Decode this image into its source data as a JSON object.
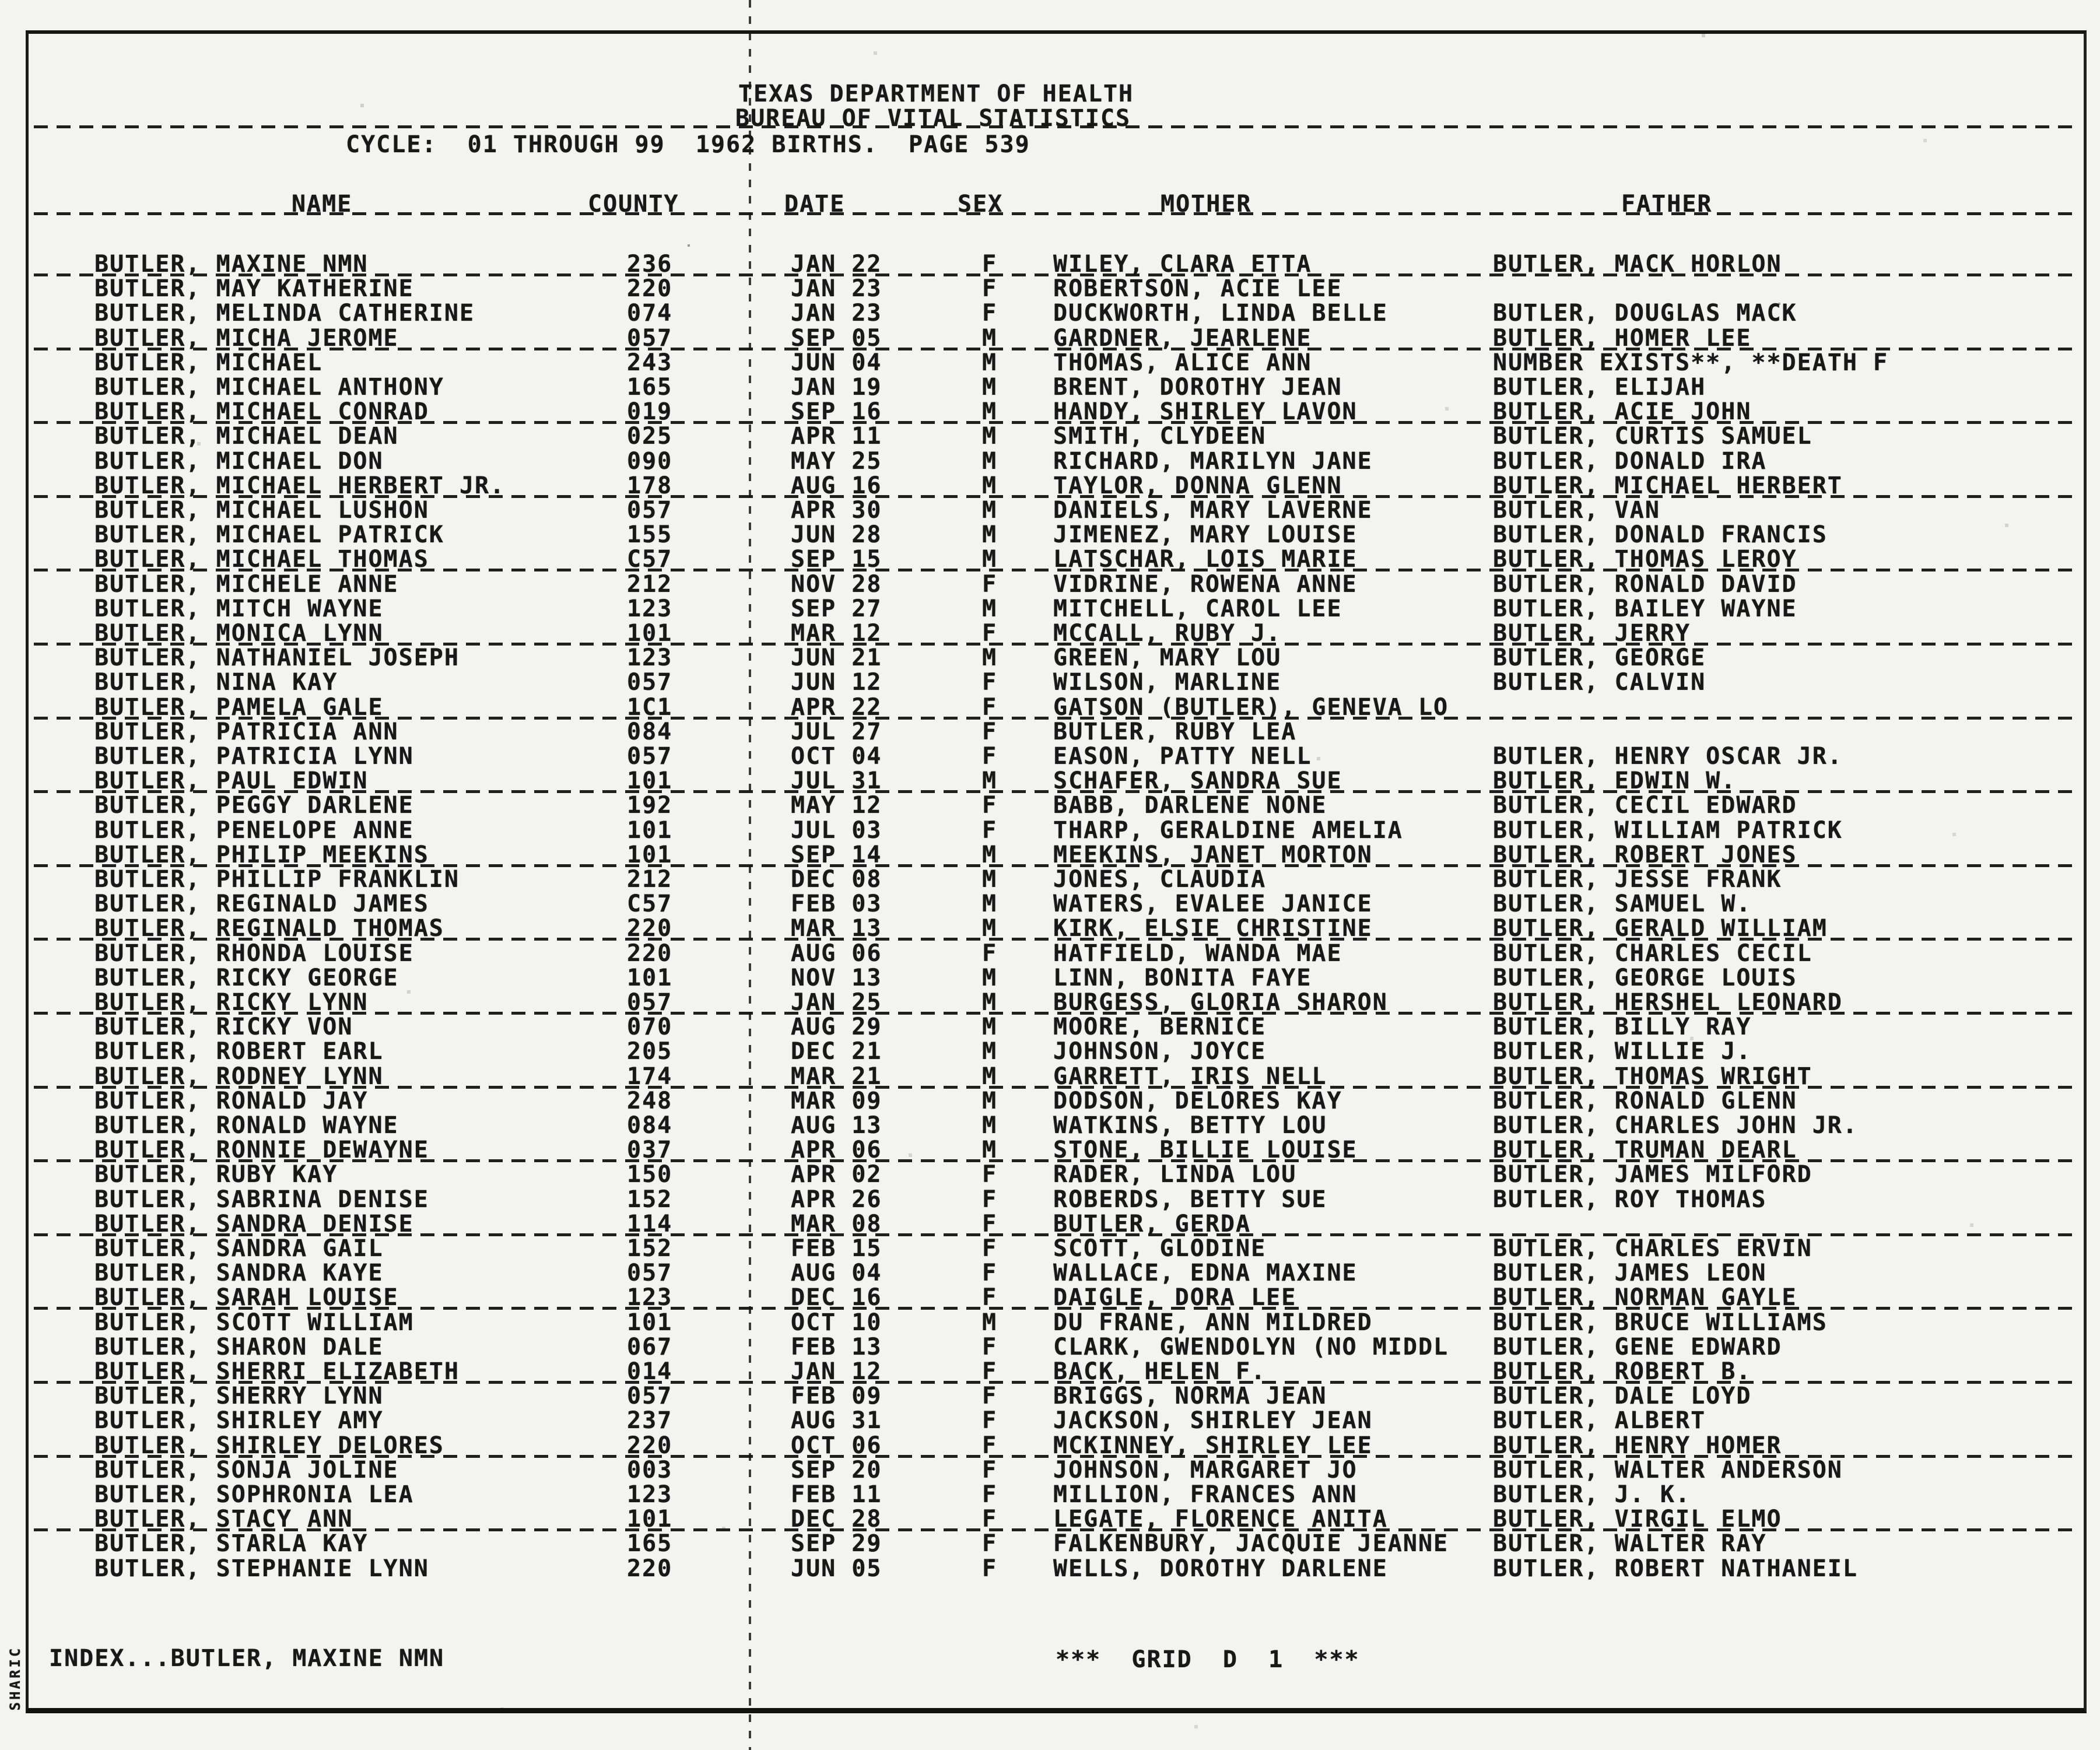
{
  "header": {
    "line1": "TEXAS DEPARTMENT OF HEALTH",
    "line2": "BUREAU OF VITAL STATISTICS",
    "cycle_line": "CYCLE:  01 THROUGH 99  1962 BIRTHS.  PAGE 539"
  },
  "columns": [
    "NAME",
    "COUNTY",
    "DATE",
    "SEX",
    "MOTHER",
    "FATHER"
  ],
  "rows": [
    {
      "name": "BUTLER, MAXINE NMN",
      "county": "236",
      "date": "JAN 22",
      "sex": "F",
      "mother": "WILEY, CLARA ETTA",
      "father": "BUTLER, MACK HORLON"
    },
    {
      "name": "BUTLER, MAY KATHERINE",
      "county": "220",
      "date": "JAN 23",
      "sex": "F",
      "mother": "ROBERTSON, ACIE LEE",
      "father": ""
    },
    {
      "name": "BUTLER, MELINDA CATHERINE",
      "county": "074",
      "date": "JAN 23",
      "sex": "F",
      "mother": "DUCKWORTH, LINDA BELLE",
      "father": "BUTLER, DOUGLAS MACK"
    },
    {
      "name": "BUTLER, MICHA JEROME",
      "county": "057",
      "date": "SEP 05",
      "sex": "M",
      "mother": "GARDNER, JEARLENE",
      "father": "BUTLER, HOMER LEE"
    },
    {
      "name": "BUTLER, MICHAEL",
      "county": "243",
      "date": "JUN 04",
      "sex": "M",
      "mother": "THOMAS, ALICE ANN",
      "father": "NUMBER EXISTS**, **DEATH F"
    },
    {
      "name": "BUTLER, MICHAEL ANTHONY",
      "county": "165",
      "date": "JAN 19",
      "sex": "M",
      "mother": "BRENT, DOROTHY JEAN",
      "father": "BUTLER, ELIJAH"
    },
    {
      "name": "BUTLER, MICHAEL CONRAD",
      "county": "019",
      "date": "SEP 16",
      "sex": "M",
      "mother": "HANDY, SHIRLEY LAVON",
      "father": "BUTLER, ACIE JOHN"
    },
    {
      "name": "BUTLER, MICHAEL DEAN",
      "county": "025",
      "date": "APR 11",
      "sex": "M",
      "mother": "SMITH, CLYDEEN",
      "father": "BUTLER, CURTIS SAMUEL"
    },
    {
      "name": "BUTLER, MICHAEL DON",
      "county": "090",
      "date": "MAY 25",
      "sex": "M",
      "mother": "RICHARD, MARILYN JANE",
      "father": "BUTLER, DONALD IRA"
    },
    {
      "name": "BUTLER, MICHAEL HERBERT JR.",
      "county": "178",
      "date": "AUG 16",
      "sex": "M",
      "mother": "TAYLOR, DONNA GLENN",
      "father": "BUTLER, MICHAEL HERBERT"
    },
    {
      "name": "BUTLER, MICHAEL LUSHON",
      "county": "057",
      "date": "APR 30",
      "sex": "M",
      "mother": "DANIELS, MARY LAVERNE",
      "father": "BUTLER, VAN"
    },
    {
      "name": "BUTLER, MICHAEL PATRICK",
      "county": "155",
      "date": "JUN 28",
      "sex": "M",
      "mother": "JIMENEZ, MARY LOUISE",
      "father": "BUTLER, DONALD FRANCIS"
    },
    {
      "name": "BUTLER, MICHAEL THOMAS",
      "county": "C57",
      "date": "SEP 15",
      "sex": "M",
      "mother": "LATSCHAR, LOIS MARIE",
      "father": "BUTLER, THOMAS LEROY"
    },
    {
      "name": "BUTLER, MICHELE ANNE",
      "county": "212",
      "date": "NOV 28",
      "sex": "F",
      "mother": "VIDRINE, ROWENA ANNE",
      "father": "BUTLER, RONALD DAVID"
    },
    {
      "name": "BUTLER, MITCH WAYNE",
      "county": "123",
      "date": "SEP 27",
      "sex": "M",
      "mother": "MITCHELL, CAROL LEE",
      "father": "BUTLER, BAILEY WAYNE"
    },
    {
      "name": "BUTLER, MONICA LYNN",
      "county": "101",
      "date": "MAR 12",
      "sex": "F",
      "mother": "MCCALL, RUBY J.",
      "father": "BUTLER, JERRY"
    },
    {
      "name": "BUTLER, NATHANIEL JOSEPH",
      "county": "123",
      "date": "JUN 21",
      "sex": "M",
      "mother": "GREEN, MARY LOU",
      "father": "BUTLER, GEORGE"
    },
    {
      "name": "BUTLER, NINA KAY",
      "county": "057",
      "date": "JUN 12",
      "sex": "F",
      "mother": "WILSON, MARLINE",
      "father": "BUTLER, CALVIN"
    },
    {
      "name": "BUTLER, PAMELA GALE",
      "county": "1C1",
      "date": "APR 22",
      "sex": "F",
      "mother": "GATSON (BUTLER), GENEVA LO",
      "father": ""
    },
    {
      "name": "BUTLER, PATRICIA ANN",
      "county": "084",
      "date": "JUL 27",
      "sex": "F",
      "mother": "BUTLER, RUBY LEA",
      "father": ""
    },
    {
      "name": "BUTLER, PATRICIA LYNN",
      "county": "057",
      "date": "OCT 04",
      "sex": "F",
      "mother": "EASON, PATTY NELL",
      "father": "BUTLER, HENRY OSCAR JR."
    },
    {
      "name": "BUTLER, PAUL EDWIN",
      "county": "101",
      "date": "JUL 31",
      "sex": "M",
      "mother": "SCHAFER, SANDRA SUE",
      "father": "BUTLER, EDWIN W."
    },
    {
      "name": "BUTLER, PEGGY DARLENE",
      "county": "192",
      "date": "MAY 12",
      "sex": "F",
      "mother": "BABB, DARLENE NONE",
      "father": "BUTLER, CECIL EDWARD"
    },
    {
      "name": "BUTLER, PENELOPE ANNE",
      "county": "101",
      "date": "JUL 03",
      "sex": "F",
      "mother": "THARP, GERALDINE AMELIA",
      "father": "BUTLER, WILLIAM PATRICK"
    },
    {
      "name": "BUTLER, PHILIP MEEKINS",
      "county": "101",
      "date": "SEP 14",
      "sex": "M",
      "mother": "MEEKINS, JANET MORTON",
      "father": "BUTLER, ROBERT JONES"
    },
    {
      "name": "BUTLER, PHILLIP FRANKLIN",
      "county": "212",
      "date": "DEC 08",
      "sex": "M",
      "mother": "JONES, CLAUDIA",
      "father": "BUTLER, JESSE FRANK"
    },
    {
      "name": "BUTLER, REGINALD JAMES",
      "county": "C57",
      "date": "FEB 03",
      "sex": "M",
      "mother": "WATERS, EVALEE JANICE",
      "father": "BUTLER, SAMUEL W."
    },
    {
      "name": "BUTLER, REGINALD THOMAS",
      "county": "220",
      "date": "MAR 13",
      "sex": "M",
      "mother": "KIRK, ELSIE CHRISTINE",
      "father": "BUTLER, GERALD WILLIAM"
    },
    {
      "name": "BUTLER, RHONDA LOUISE",
      "county": "220",
      "date": "AUG 06",
      "sex": "F",
      "mother": "HATFIELD, WANDA MAE",
      "father": "BUTLER, CHARLES CECIL"
    },
    {
      "name": "BUTLER, RICKY GEORGE",
      "county": "101",
      "date": "NOV 13",
      "sex": "M",
      "mother": "LINN, BONITA FAYE",
      "father": "BUTLER, GEORGE LOUIS"
    },
    {
      "name": "BUTLER, RICKY LYNN",
      "county": "057",
      "date": "JAN 25",
      "sex": "M",
      "mother": "BURGESS, GLORIA SHARON",
      "father": "BUTLER, HERSHEL LEONARD"
    },
    {
      "name": "BUTLER, RICKY VON",
      "county": "070",
      "date": "AUG 29",
      "sex": "M",
      "mother": "MOORE, BERNICE",
      "father": "BUTLER, BILLY RAY"
    },
    {
      "name": "BUTLER, ROBERT EARL",
      "county": "205",
      "date": "DEC 21",
      "sex": "M",
      "mother": "JOHNSON, JOYCE",
      "father": "BUTLER, WILLIE J."
    },
    {
      "name": "BUTLER, RODNEY LYNN",
      "county": "174",
      "date": "MAR 21",
      "sex": "M",
      "mother": "GARRETT, IRIS NELL",
      "father": "BUTLER, THOMAS WRIGHT"
    },
    {
      "name": "BUTLER, RONALD JAY",
      "county": "248",
      "date": "MAR 09",
      "sex": "M",
      "mother": "DODSON, DELORES KAY",
      "father": "BUTLER, RONALD GLENN"
    },
    {
      "name": "BUTLER, RONALD WAYNE",
      "county": "084",
      "date": "AUG 13",
      "sex": "M",
      "mother": "WATKINS, BETTY LOU",
      "father": "BUTLER, CHARLES JOHN JR."
    },
    {
      "name": "BUTLER, RONNIE DEWAYNE",
      "county": "037",
      "date": "APR 06",
      "sex": "M",
      "mother": "STONE, BILLIE LOUISE",
      "father": "BUTLER, TRUMAN DEARL"
    },
    {
      "name": "BUTLER, RUBY KAY",
      "county": "150",
      "date": "APR 02",
      "sex": "F",
      "mother": "RADER, LINDA LOU",
      "father": "BUTLER, JAMES MILFORD"
    },
    {
      "name": "BUTLER, SABRINA DENISE",
      "county": "152",
      "date": "APR 26",
      "sex": "F",
      "mother": "ROBERDS, BETTY SUE",
      "father": "BUTLER, ROY THOMAS"
    },
    {
      "name": "BUTLER, SANDRA DENISE",
      "county": "114",
      "date": "MAR 08",
      "sex": "F",
      "mother": "BUTLER, GERDA",
      "father": ""
    },
    {
      "name": "BUTLER, SANDRA GAIL",
      "county": "152",
      "date": "FEB 15",
      "sex": "F",
      "mother": "SCOTT, GLODINE",
      "father": "BUTLER, CHARLES ERVIN"
    },
    {
      "name": "BUTLER, SANDRA KAYE",
      "county": "057",
      "date": "AUG 04",
      "sex": "F",
      "mother": "WALLACE, EDNA MAXINE",
      "father": "BUTLER, JAMES LEON"
    },
    {
      "name": "BUTLER, SARAH LOUISE",
      "county": "123",
      "date": "DEC 16",
      "sex": "F",
      "mother": "DAIGLE, DORA LEE",
      "father": "BUTLER, NORMAN GAYLE"
    },
    {
      "name": "BUTLER, SCOTT WILLIAM",
      "county": "101",
      "date": "OCT 10",
      "sex": "M",
      "mother": "DU FRANE, ANN MILDRED",
      "father": "BUTLER, BRUCE WILLIAMS"
    },
    {
      "name": "BUTLER, SHARON DALE",
      "county": "067",
      "date": "FEB 13",
      "sex": "F",
      "mother": "CLARK, GWENDOLYN (NO MIDDL",
      "father": "BUTLER, GENE EDWARD"
    },
    {
      "name": "BUTLER, SHERRI ELIZABETH",
      "county": "014",
      "date": "JAN 12",
      "sex": "F",
      "mother": "BACK, HELEN F.",
      "father": "BUTLER, ROBERT B."
    },
    {
      "name": "BUTLER, SHERRY LYNN",
      "county": "057",
      "date": "FEB 09",
      "sex": "F",
      "mother": "BRIGGS, NORMA JEAN",
      "father": "BUTLER, DALE LOYD"
    },
    {
      "name": "BUTLER, SHIRLEY AMY",
      "county": "237",
      "date": "AUG 31",
      "sex": "F",
      "mother": "JACKSON, SHIRLEY JEAN",
      "father": "BUTLER, ALBERT"
    },
    {
      "name": "BUTLER, SHIRLEY DELORES",
      "county": "220",
      "date": "OCT 06",
      "sex": "F",
      "mother": "MCKINNEY, SHIRLEY LEE",
      "father": "BUTLER, HENRY HOMER"
    },
    {
      "name": "BUTLER, SONJA JOLINE",
      "county": "003",
      "date": "SEP 20",
      "sex": "F",
      "mother": "JOHNSON, MARGARET JO",
      "father": "BUTLER, WALTER ANDERSON"
    },
    {
      "name": "BUTLER, SOPHRONIA LEA",
      "county": "123",
      "date": "FEB 11",
      "sex": "F",
      "mother": "MILLION, FRANCES ANN",
      "father": "BUTLER, J. K."
    },
    {
      "name": "BUTLER, STACY ANN",
      "county": "101",
      "date": "DEC 28",
      "sex": "F",
      "mother": "LEGATE, FLORENCE ANITA",
      "father": "BUTLER, VIRGIL ELMO"
    },
    {
      "name": "BUTLER, STARLA KAY",
      "county": "165",
      "date": "SEP 29",
      "sex": "F",
      "mother": "FALKENBURY, JACQUIE JEANNE",
      "father": "BUTLER, WALTER RAY"
    },
    {
      "name": "BUTLER, STEPHANIE LYNN",
      "county": "220",
      "date": "JUN 05",
      "sex": "F",
      "mother": "WELLS, DOROTHY DARLENE",
      "father": "BUTLER, ROBERT NATHANEIL"
    }
  ],
  "footer": {
    "index_label": "INDEX...BUTLER, MAXINE NMN",
    "grid_label": "***  GRID  D  1  ***",
    "side_label": "SHARIC"
  },
  "colors": {
    "ink": "#181818",
    "paper": "#f3f3f0"
  }
}
